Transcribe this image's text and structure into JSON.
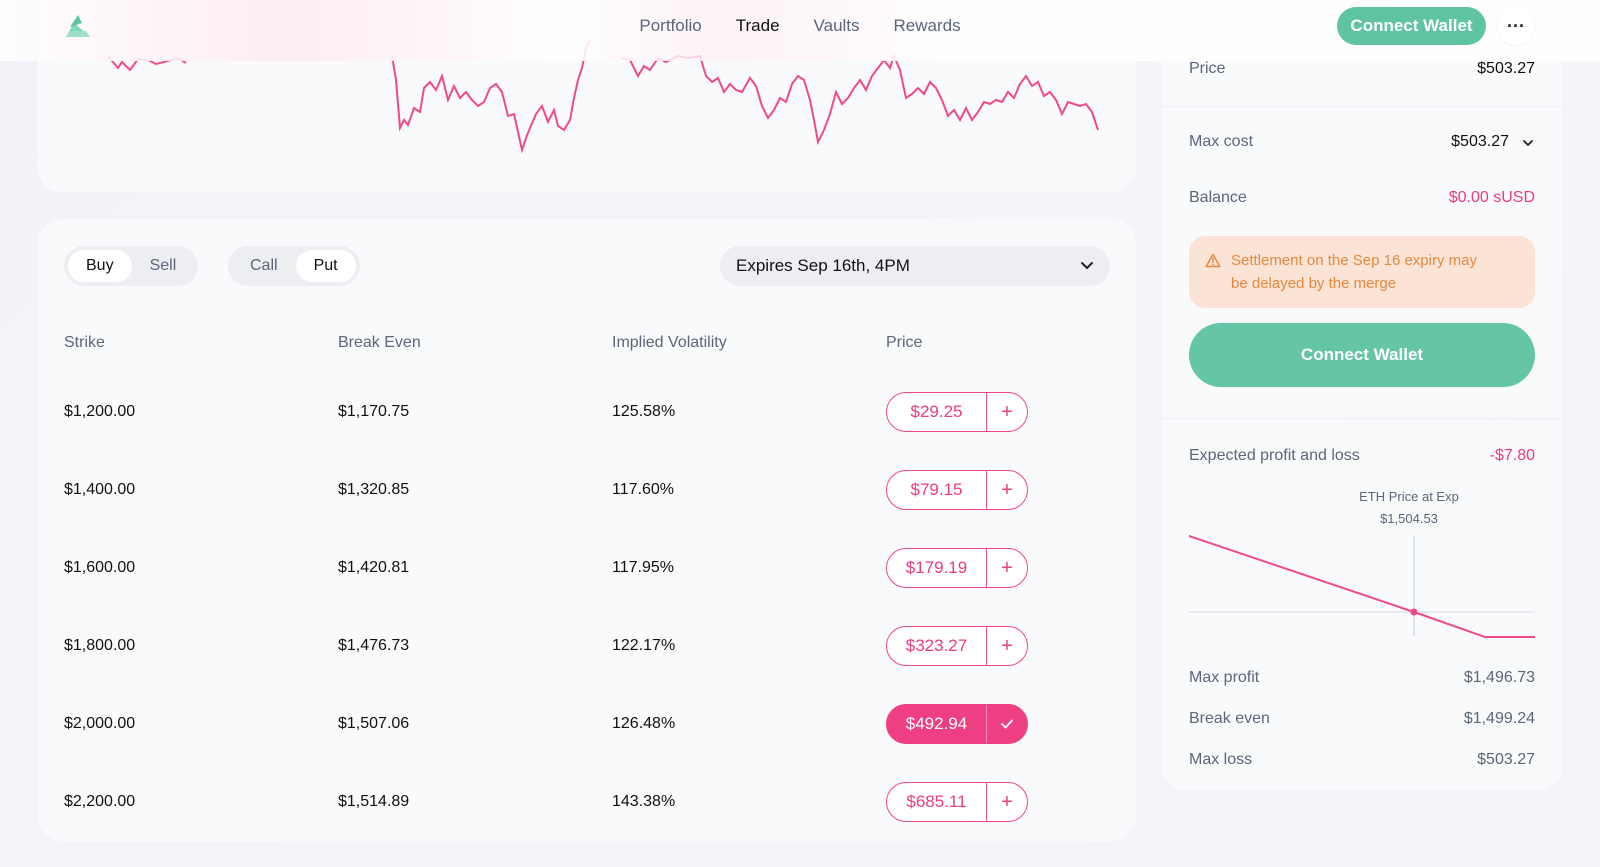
{
  "nav": {
    "items": [
      {
        "label": "Portfolio",
        "active": false
      },
      {
        "label": "Trade",
        "active": true
      },
      {
        "label": "Vaults",
        "active": false
      },
      {
        "label": "Rewards",
        "active": false
      }
    ],
    "connect_label": "Connect Wallet",
    "more_label": "···"
  },
  "trade": {
    "side_toggle": [
      "Buy",
      "Sell"
    ],
    "type_toggle": [
      "Call",
      "Put"
    ],
    "expiry_label": "Expires Sep 16th, 4PM",
    "columns": [
      "Strike",
      "Break Even",
      "Implied Volatility",
      "Price"
    ],
    "rows": [
      {
        "strike": "$1,200.00",
        "break_even": "$1,170.75",
        "iv": "125.58%",
        "price": "$29.25",
        "selected": false
      },
      {
        "strike": "$1,400.00",
        "break_even": "$1,320.85",
        "iv": "117.60%",
        "price": "$79.15",
        "selected": false
      },
      {
        "strike": "$1,600.00",
        "break_even": "$1,420.81",
        "iv": "117.95%",
        "price": "$179.19",
        "selected": false
      },
      {
        "strike": "$1,800.00",
        "break_even": "$1,476.73",
        "iv": "122.17%",
        "price": "$323.27",
        "selected": false
      },
      {
        "strike": "$2,000.00",
        "break_even": "$1,507.06",
        "iv": "126.48%",
        "price": "$492.94",
        "selected": true
      },
      {
        "strike": "$2,200.00",
        "break_even": "$1,514.89",
        "iv": "143.38%",
        "price": "$685.11",
        "selected": false
      }
    ]
  },
  "panel": {
    "price_label": "Price",
    "price_value": "$503.27",
    "max_cost_label": "Max cost",
    "max_cost_value": "$503.27",
    "balance_label": "Balance",
    "balance_value": "$0.00 sUSD",
    "warning_line1": "Settlement on the Sep 16 expiry may",
    "warning_line2": "be delayed by the merge",
    "connect_label": "Connect Wallet",
    "pnl_label": "Expected profit and loss",
    "pnl_value": "-$7.80",
    "eth_price_label": "ETH Price at Exp",
    "eth_price_value": "$1,504.53",
    "max_profit_label": "Max profit",
    "max_profit_value": "$1,496.73",
    "break_even_label": "Break even",
    "break_even_value": "$1,499.24",
    "max_loss_label": "Max loss",
    "max_loss_value": "$503.27"
  },
  "colors": {
    "accent_green": "#5ec4a4",
    "accent_pink": "#ec3b82",
    "warning_bg": "#fbe3d6",
    "warning_text": "#e5893f"
  }
}
